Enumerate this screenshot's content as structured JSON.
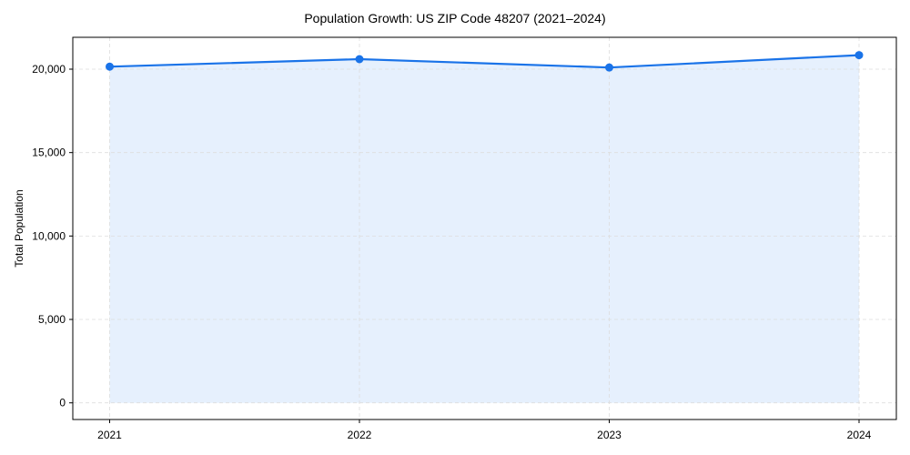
{
  "chart_data": {
    "type": "area",
    "title": "Population Growth: US ZIP Code 48207 (2021–2024)",
    "xlabel": "",
    "ylabel": "Total Population",
    "categories": [
      "2021",
      "2022",
      "2023",
      "2024"
    ],
    "series": [
      {
        "name": "Total Population",
        "values": [
          20150,
          20600,
          20100,
          20840
        ]
      }
    ],
    "ylim": [
      -1000,
      21800
    ],
    "yticks": [
      0,
      5000,
      10000,
      15000,
      20000
    ],
    "ytick_labels": [
      "0",
      "5,000",
      "10,000",
      "15,000",
      "20,000"
    ],
    "grid": true,
    "legend": false,
    "colors": {
      "line": "#1a73e8",
      "fill": "#e6f0fd",
      "grid": "#dddddd",
      "axis": "#000000"
    }
  }
}
